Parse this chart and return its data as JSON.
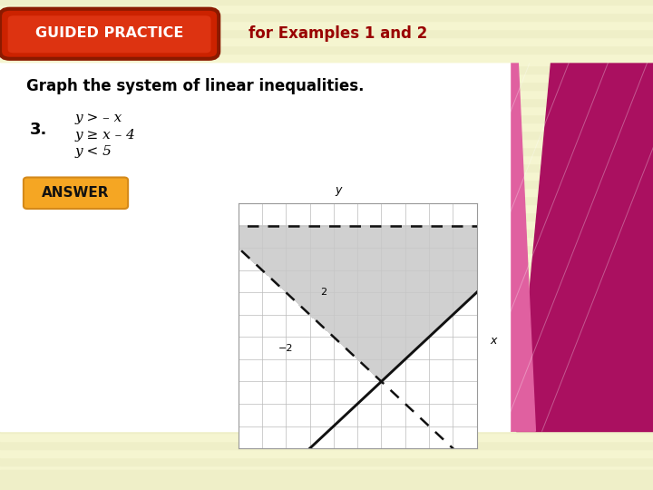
{
  "title": "GUIDED PRACTICE",
  "subtitle": "for Examples 1 and 2",
  "main_text": "Graph the system of linear inequalities.",
  "problem_number": "3.",
  "ineq1": "y > – x",
  "ineq2": "y ≥ x – 4",
  "ineq3": "y < 5",
  "answer_label": "ANSWER",
  "bg_stripe1": "#f5f5d0",
  "bg_stripe2": "#efefc8",
  "header_bg_outer": "#8B1A00",
  "header_bg_inner": "#cc2200",
  "header_text_color": "#ffffff",
  "subtitle_color": "#990000",
  "answer_bg": "#f5a623",
  "answer_border": "#d4891a",
  "graph_xlim": [
    -4,
    6
  ],
  "graph_ylim": [
    -5,
    6
  ],
  "grid_color": "#bbbbbb",
  "shading_color": "#c8c8c8",
  "shading_alpha": 0.85,
  "line_color": "#111111",
  "line_width": 1.8,
  "pink_light": "#f0a0c0",
  "pink_mid": "#e060a0",
  "pink_dark": "#aa1060",
  "pink_pale": "#f8d0e8"
}
